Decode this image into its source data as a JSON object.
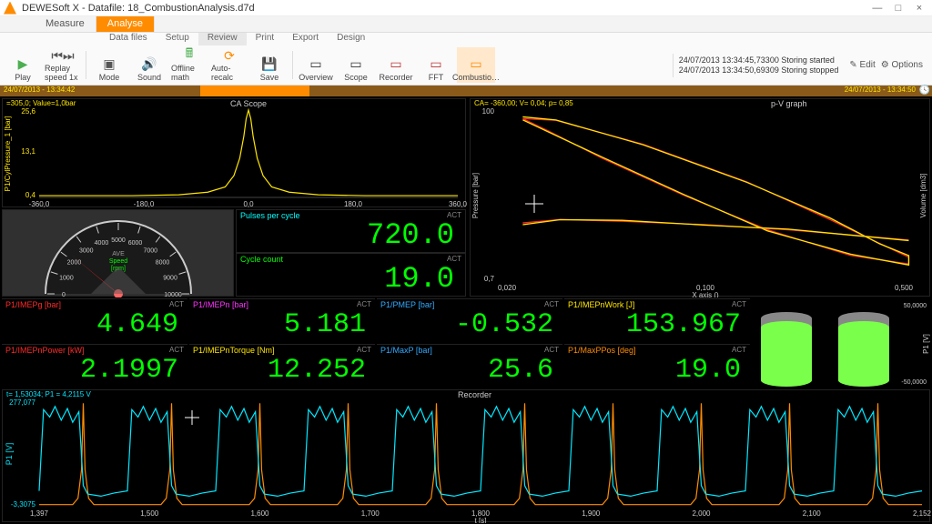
{
  "app": {
    "title": "DEWESoft X - Datafile: 18_CombustionAnalysis.d7d",
    "tabs": [
      "Measure",
      "Analyse"
    ],
    "active_tab": 1,
    "subtabs": [
      "Data files",
      "Setup",
      "Review",
      "Print",
      "Export",
      "Design"
    ],
    "active_subtab": 2,
    "right": {
      "edit": "Edit",
      "options": "Options"
    }
  },
  "toolbar": [
    {
      "id": "play",
      "label": "Play",
      "glyph": "▶",
      "color": "#4caf50"
    },
    {
      "id": "replay",
      "label": "Replay speed 1x",
      "glyph": "⏮⏭",
      "color": "#555"
    },
    {
      "id": "mode",
      "label": "Mode",
      "glyph": "▣",
      "color": "#555"
    },
    {
      "id": "sound",
      "label": "Sound",
      "glyph": "🔊",
      "color": "#555"
    },
    {
      "id": "offline",
      "label": "Offline math",
      "glyph": "🖩",
      "color": "#4caf50"
    },
    {
      "id": "autorecalc",
      "label": "Auto-recalc",
      "glyph": "⟳",
      "color": "#ff8c00"
    },
    {
      "id": "save",
      "label": "Save",
      "glyph": "💾",
      "color": "#555"
    },
    {
      "id": "overview",
      "label": "Overview",
      "glyph": "▭",
      "color": "#333"
    },
    {
      "id": "scope",
      "label": "Scope",
      "glyph": "▭",
      "color": "#333"
    },
    {
      "id": "recorder",
      "label": "Recorder",
      "glyph": "▭",
      "color": "#b33"
    },
    {
      "id": "fft",
      "label": "FFT",
      "glyph": "▭",
      "color": "#b33"
    },
    {
      "id": "combustion",
      "label": "Combustio…",
      "glyph": "▭",
      "color": "#ff8c00",
      "active": true
    }
  ],
  "log": [
    "24/07/2013 13:34:45,73300   Storing started",
    "24/07/2013 13:34:50,69309   Storing stopped"
  ],
  "timestrip": {
    "left_label": "24/07/2013 - 13:34:42",
    "right_label": "24/07/2013 - 13:34:50",
    "mark_start": 0.22,
    "mark_end": 0.34
  },
  "ca_scope": {
    "title": "CA Scope",
    "cursor": "=305,0; Value=1,0bar",
    "xmin": -360,
    "xmax": 360,
    "ticks": [
      -360,
      -180,
      0,
      180,
      360
    ],
    "ymax_label": "25,6",
    "ymid_label": "13,1",
    "ymin_label": "0,4",
    "ylabel": "P1/CylPressure_1 [bar]",
    "color": "#ffe600",
    "data_x": [
      -360,
      -200,
      -120,
      -70,
      -40,
      -25,
      -15,
      -8,
      -4,
      0,
      4,
      8,
      15,
      25,
      40,
      70,
      120,
      200,
      360
    ],
    "data_y": [
      0.02,
      0.02,
      0.03,
      0.06,
      0.12,
      0.25,
      0.45,
      0.7,
      0.9,
      1.0,
      0.9,
      0.7,
      0.45,
      0.25,
      0.12,
      0.06,
      0.03,
      0.02,
      0.02
    ]
  },
  "pv": {
    "title": "p-V graph",
    "cursor": "CA= -360,00; V= 0,04; p= 0,85",
    "xlabel": "X axis ()",
    "ylabel_l": "Pressure [bar]",
    "ylabel_r": "Volume [dm3]",
    "xmin_label": "0,020",
    "xmid_label": "0,100",
    "xmax_label": "0,500",
    "ymin_label": "0,7",
    "ymax_label": "100",
    "red": "#ff2a2a",
    "yellow": "#ffe600",
    "loop_top": [
      [
        0.06,
        0.95
      ],
      [
        0.14,
        0.94
      ],
      [
        0.35,
        0.8
      ],
      [
        0.6,
        0.58
      ],
      [
        0.8,
        0.36
      ],
      [
        0.92,
        0.22
      ],
      [
        0.99,
        0.14
      ]
    ],
    "loop_bot": [
      [
        0.99,
        0.1
      ],
      [
        0.85,
        0.15
      ],
      [
        0.65,
        0.3
      ],
      [
        0.45,
        0.5
      ],
      [
        0.25,
        0.72
      ],
      [
        0.12,
        0.88
      ],
      [
        0.06,
        0.95
      ]
    ],
    "pump": [
      [
        0.06,
        0.34
      ],
      [
        0.15,
        0.36
      ],
      [
        0.3,
        0.35
      ],
      [
        0.5,
        0.33
      ],
      [
        0.7,
        0.3
      ],
      [
        0.85,
        0.27
      ],
      [
        0.99,
        0.24
      ]
    ]
  },
  "gauge": {
    "label": "AVE",
    "sub": "Speed",
    "sub2": "[rpm]",
    "min": 0,
    "max": 10000,
    "major": 1000,
    "value": 2200,
    "needle_color": "#ff2a2a"
  },
  "pulses": {
    "label": "Pulses per cycle",
    "value": "720.0",
    "act": "ACT",
    "color": "#00ffff"
  },
  "cycles": {
    "label": "Cycle count",
    "value": "19.0",
    "act": "ACT",
    "color": "#00ff00"
  },
  "digits_row1": [
    {
      "label": "P1/IMEPg [bar]",
      "color": "#ff2a2a",
      "value": "4.649"
    },
    {
      "label": "P1/IMEPn [bar]",
      "color": "#ff33ff",
      "value": "5.181"
    },
    {
      "label": "P1/PMEP [bar]",
      "color": "#33aaff",
      "value": "-0.532"
    },
    {
      "label": "P1/IMEPnWork [J]",
      "color": "#ffe600",
      "value": "153.967"
    }
  ],
  "digits_row2": [
    {
      "label": "P1/IMEPnPower [kW]",
      "color": "#ff2a2a",
      "value": "2.1997"
    },
    {
      "label": "P1/IMEPnTorque [Nm]",
      "color": "#ffe600",
      "value": "12.252"
    },
    {
      "label": "P1/MaxP [bar]",
      "color": "#33aaff",
      "value": "25.6"
    },
    {
      "label": "P1/MaxPPos [deg]",
      "color": "#ff8c00",
      "value": "19.0"
    }
  ],
  "bars": {
    "y_top": "50,0000",
    "y_bot": "-50,0000",
    "ylabel": "P1 [V]",
    "color_fill": "#7aff4a",
    "color_top": "#888"
  },
  "recorder": {
    "title": "Recorder",
    "cursor": "t= 1,53034; P1 = 4,2115 V",
    "ylabel": "P1 [V]",
    "ymax": "277,077",
    "ymin": "-3,3075",
    "xmin": "1,397",
    "ticks": [
      "1,500",
      "1,600",
      "1,700",
      "1,800",
      "1,900",
      "2,000",
      "2,100"
    ],
    "xmax": "2,152",
    "xlabel": "t [s]",
    "cyan": "#00e8ff",
    "orange": "#ff8c00",
    "cycles": 10
  }
}
